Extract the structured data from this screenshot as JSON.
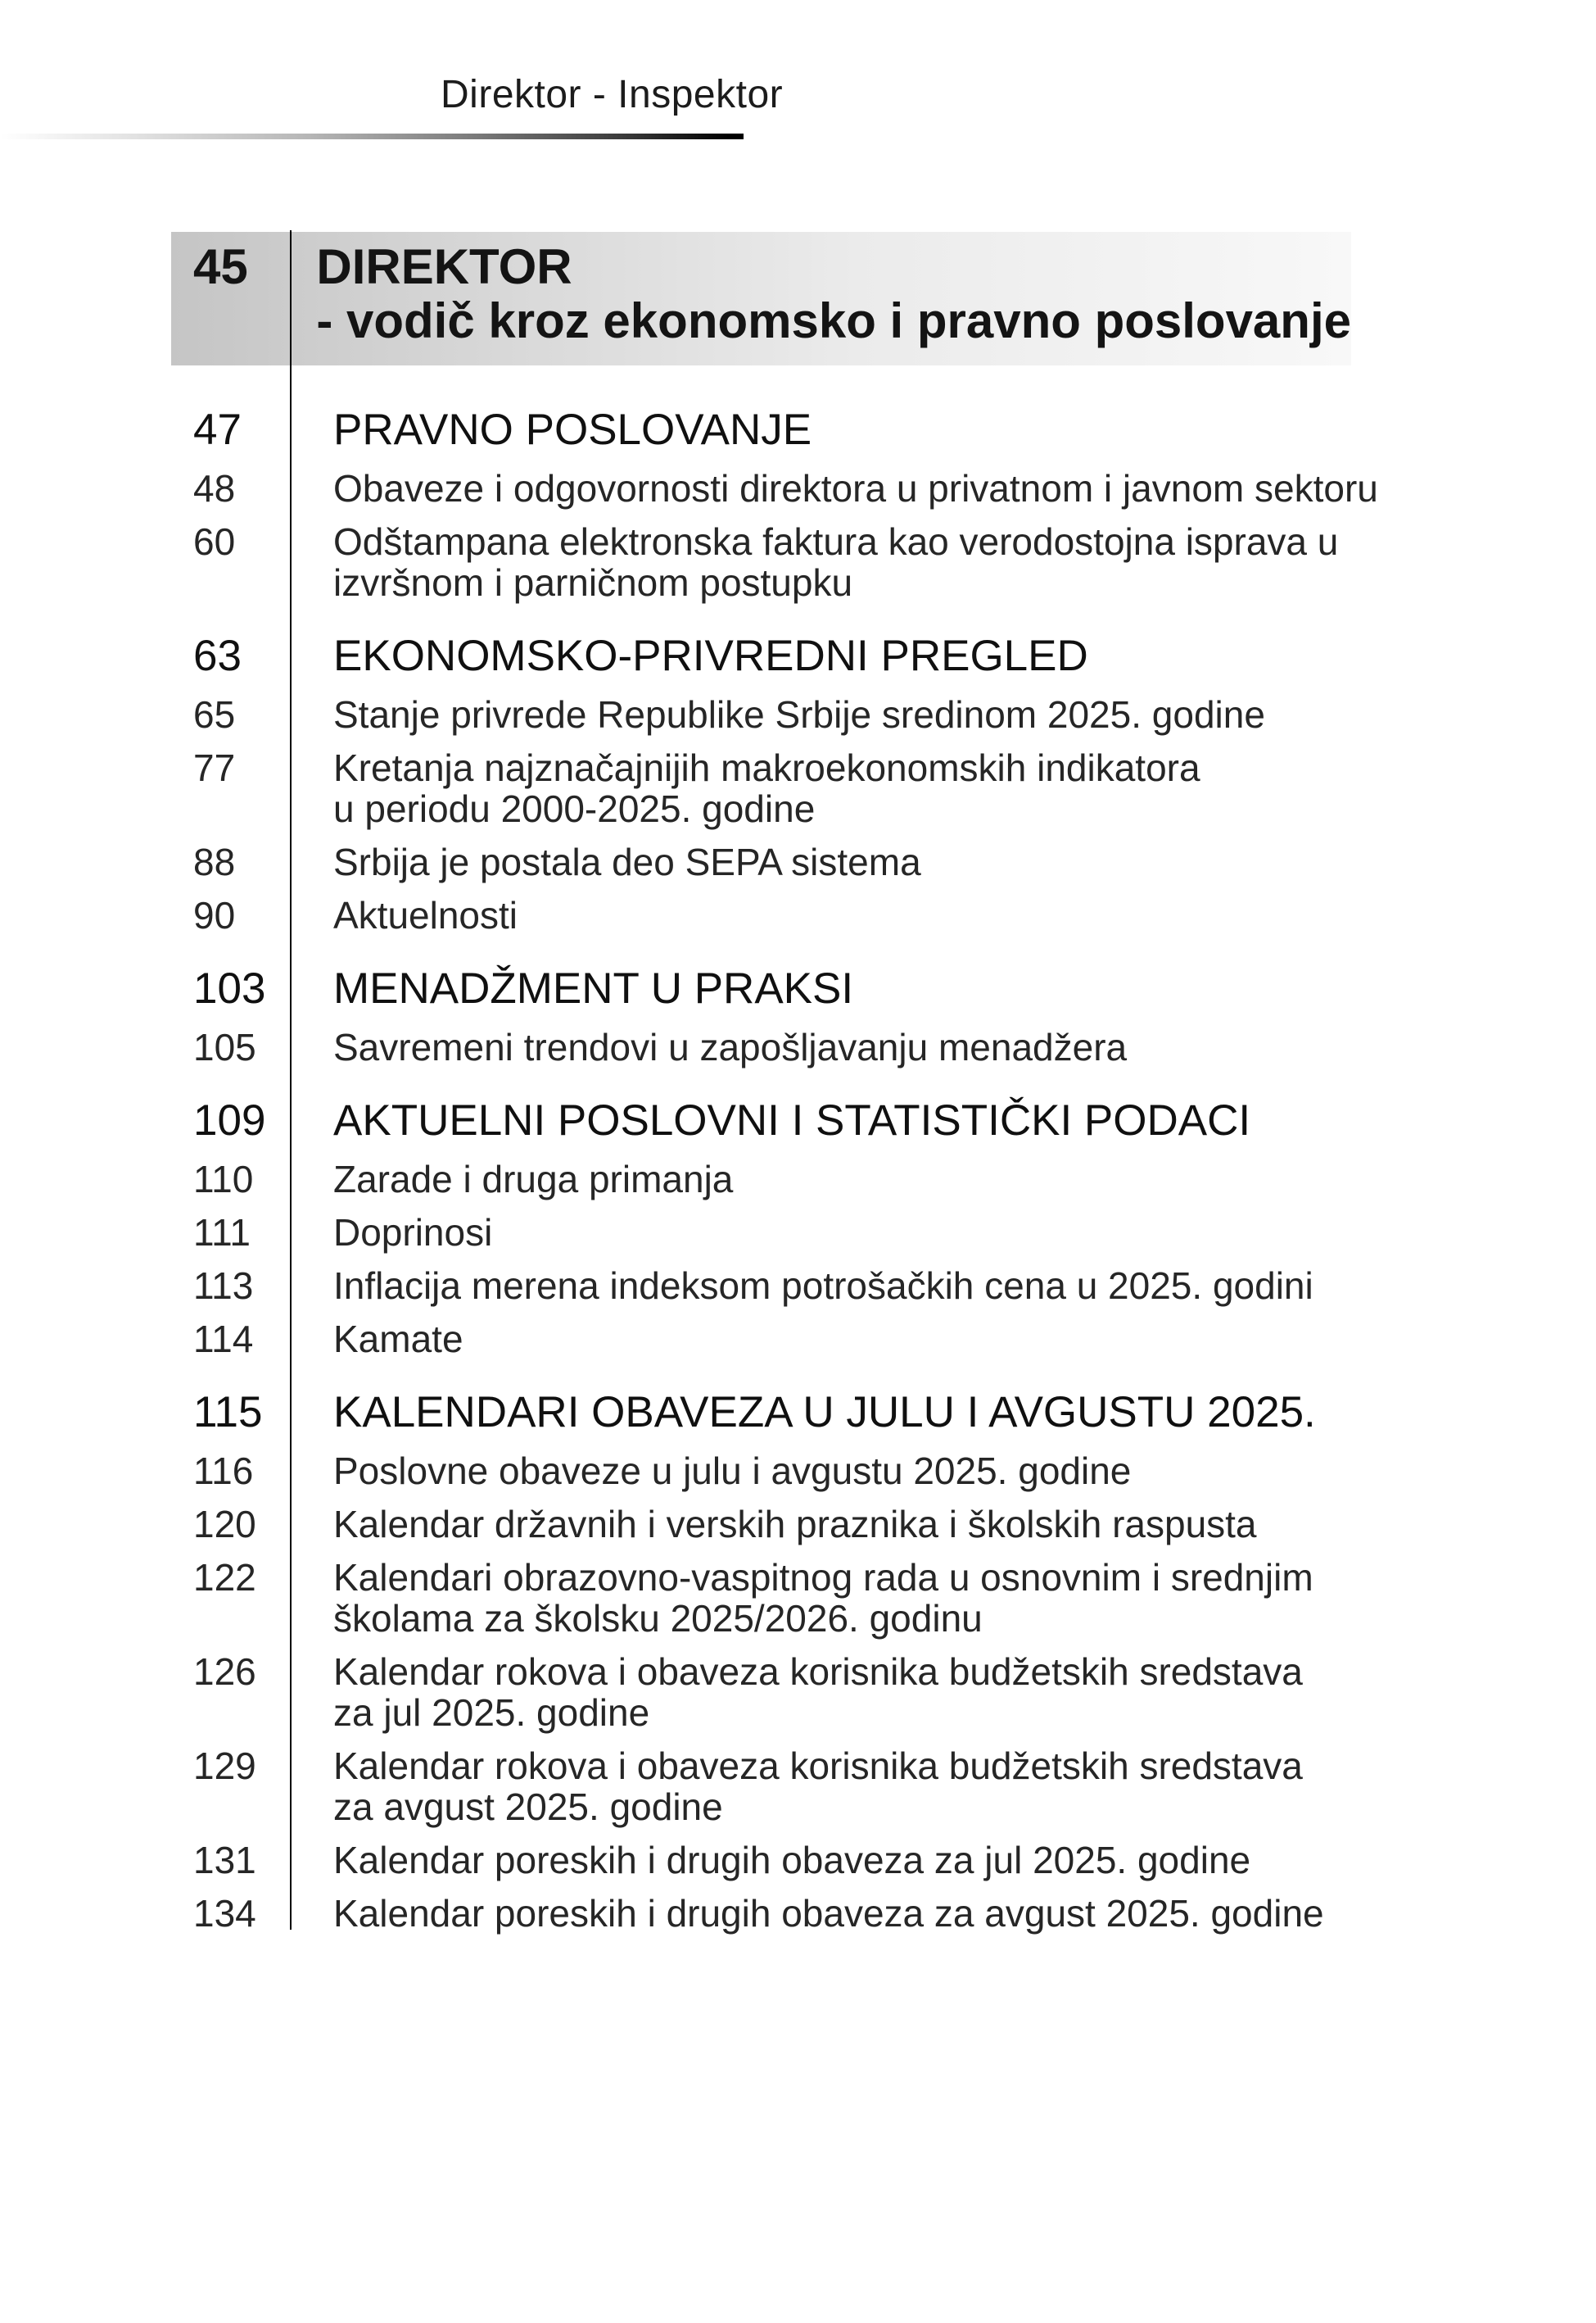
{
  "page_header": {
    "title": "Direktor - Inspektor"
  },
  "featured": {
    "page": "45",
    "title_lines": [
      "DIREKTOR",
      "- vodič kroz ekonomsko i pravno poslovanje"
    ]
  },
  "toc_entries": [
    {
      "page": "47",
      "type": "section",
      "lines": [
        "PRAVNO POSLOVANJE"
      ]
    },
    {
      "page": "48",
      "type": "item",
      "lines": [
        "Obaveze i odgovornosti direktora u privatnom i javnom sektoru"
      ]
    },
    {
      "page": "60",
      "type": "item",
      "lines": [
        "Odštampana elektronska faktura kao verodostojna isprava u",
        "izvršnom i parničnom postupku"
      ]
    },
    {
      "page": "63",
      "type": "section",
      "lines": [
        "EKONOMSKO-PRIVREDNI PREGLED"
      ]
    },
    {
      "page": "65",
      "type": "item",
      "lines": [
        "Stanje privrede Republike Srbije sredinom 2025. godine"
      ]
    },
    {
      "page": "77",
      "type": "item",
      "lines": [
        "Kretanja najznačajnijih makroekonomskih indikatora",
        "u periodu 2000-2025. godine"
      ]
    },
    {
      "page": "88",
      "type": "item",
      "lines": [
        "Srbija je postala deo SEPA sistema"
      ]
    },
    {
      "page": "90",
      "type": "item",
      "lines": [
        "Aktuelnosti"
      ]
    },
    {
      "page": "103",
      "type": "section",
      "lines": [
        "MENADŽMENT U PRAKSI"
      ]
    },
    {
      "page": "105",
      "type": "item",
      "lines": [
        "Savremeni trendovi u zapošljavanju menadžera"
      ]
    },
    {
      "page": "109",
      "type": "section",
      "lines": [
        "AKTUELNI POSLOVNI I STATISTIČKI PODACI"
      ]
    },
    {
      "page": "110",
      "type": "item",
      "lines": [
        "Zarade i druga primanja"
      ]
    },
    {
      "page": "111",
      "type": "item",
      "lines": [
        "Doprinosi"
      ]
    },
    {
      "page": "113",
      "type": "item",
      "lines": [
        "Inflacija merena indeksom potrošačkih cena u 2025. godini"
      ]
    },
    {
      "page": "114",
      "type": "item",
      "lines": [
        "Kamate"
      ]
    },
    {
      "page": "115",
      "type": "section",
      "lines": [
        "KALENDARI OBAVEZA U JULU I AVGUSTU 2025."
      ]
    },
    {
      "page": "116",
      "type": "item",
      "lines": [
        "Poslovne obaveze u julu i avgustu 2025. godine"
      ]
    },
    {
      "page": "120",
      "type": "item",
      "lines": [
        "Kalendar državnih i verskih praznika i školskih raspusta"
      ]
    },
    {
      "page": "122",
      "type": "item",
      "lines": [
        "Kalendari obrazovno-vaspitnog rada u osnovnim i srednjim",
        "školama za školsku 2025/2026. godinu"
      ]
    },
    {
      "page": "126",
      "type": "item",
      "lines": [
        "Kalendar rokova i obaveza korisnika budžetskih sredstava",
        "za jul 2025. godine"
      ]
    },
    {
      "page": "129",
      "type": "item",
      "lines": [
        "Kalendar rokova i obaveza korisnika budžetskih sredstava",
        "za avgust 2025. godine"
      ]
    },
    {
      "page": "131",
      "type": "item",
      "lines": [
        "Kalendar poreskih i drugih obaveza za jul 2025. godine"
      ]
    },
    {
      "page": "134",
      "type": "item",
      "lines": [
        "Kalendar poreskih i drugih obaveza za avgust 2025. godine"
      ]
    }
  ],
  "colors": {
    "rule": "#000000",
    "band_gradient_start": "#c5c5c5",
    "band_gradient_end": "#f8f8f8",
    "header_rule_start": "#ffffff",
    "header_rule_end": "#000000",
    "text": "#1f1f1f"
  }
}
